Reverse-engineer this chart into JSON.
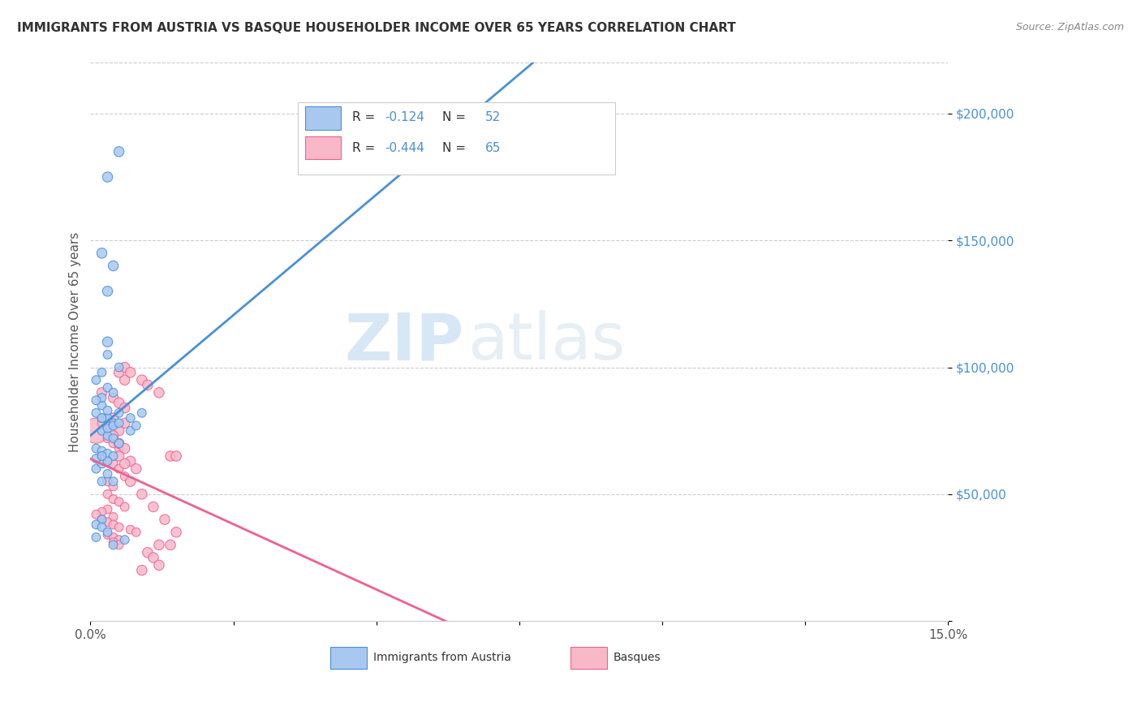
{
  "title": "IMMIGRANTS FROM AUSTRIA VS BASQUE HOUSEHOLDER INCOME OVER 65 YEARS CORRELATION CHART",
  "source": "Source: ZipAtlas.com",
  "ylabel": "Householder Income Over 65 years",
  "xlim": [
    0,
    0.15
  ],
  "ylim": [
    0,
    220000
  ],
  "yticks": [
    0,
    50000,
    100000,
    150000,
    200000
  ],
  "ytick_labels": [
    "",
    "$50,000",
    "$100,000",
    "$150,000",
    "$200,000"
  ],
  "xticks": [
    0.0,
    0.025,
    0.05,
    0.075,
    0.1,
    0.125,
    0.15
  ],
  "xtick_labels": [
    "0.0%",
    "",
    "",
    "",
    "",
    "",
    "15.0%"
  ],
  "austria_color": "#a8c8f0",
  "basque_color": "#f9b8c8",
  "austria_line_color": "#4a90d9",
  "basque_line_color": "#f06090",
  "austria_R": -0.124,
  "austria_N": 52,
  "basque_R": -0.444,
  "basque_N": 65,
  "watermark_zip": "ZIP",
  "watermark_atlas": "atlas",
  "austria_x": [
    0.002,
    0.003,
    0.007,
    0.004,
    0.002,
    0.003,
    0.004,
    0.005,
    0.001,
    0.002,
    0.003,
    0.004,
    0.002,
    0.003,
    0.001,
    0.002,
    0.003,
    0.005,
    0.002,
    0.001,
    0.003,
    0.004,
    0.002,
    0.001,
    0.003,
    0.004,
    0.002,
    0.003,
    0.005,
    0.002,
    0.004,
    0.003,
    0.001,
    0.002,
    0.003,
    0.001,
    0.002,
    0.007,
    0.003,
    0.008,
    0.004,
    0.005,
    0.003,
    0.005,
    0.009,
    0.002,
    0.001,
    0.002,
    0.003,
    0.001,
    0.006,
    0.004
  ],
  "austria_y": [
    80000,
    80000,
    80000,
    78000,
    75000,
    73000,
    72000,
    70000,
    68000,
    67000,
    66000,
    65000,
    85000,
    83000,
    82000,
    80000,
    105000,
    100000,
    98000,
    95000,
    92000,
    90000,
    88000,
    87000,
    130000,
    140000,
    145000,
    175000,
    185000,
    55000,
    55000,
    58000,
    60000,
    62000,
    63000,
    64000,
    65000,
    75000,
    76000,
    77000,
    77000,
    78000,
    110000,
    82000,
    82000,
    40000,
    38000,
    37000,
    35000,
    33000,
    32000,
    30000
  ],
  "austria_sizes": [
    60,
    60,
    60,
    60,
    60,
    60,
    60,
    60,
    60,
    60,
    60,
    60,
    60,
    60,
    60,
    60,
    60,
    60,
    60,
    60,
    60,
    60,
    60,
    60,
    80,
    80,
    80,
    80,
    80,
    60,
    60,
    60,
    60,
    60,
    60,
    60,
    60,
    60,
    60,
    60,
    60,
    60,
    80,
    60,
    60,
    60,
    60,
    60,
    60,
    60,
    60,
    60
  ],
  "basque_x": [
    0.001,
    0.002,
    0.003,
    0.004,
    0.005,
    0.002,
    0.003,
    0.004,
    0.005,
    0.006,
    0.003,
    0.004,
    0.003,
    0.004,
    0.005,
    0.006,
    0.003,
    0.002,
    0.001,
    0.004,
    0.002,
    0.003,
    0.004,
    0.005,
    0.007,
    0.008,
    0.003,
    0.004,
    0.005,
    0.004,
    0.005,
    0.002,
    0.004,
    0.005,
    0.006,
    0.004,
    0.006,
    0.005,
    0.004,
    0.005,
    0.006,
    0.005,
    0.007,
    0.006,
    0.008,
    0.007,
    0.009,
    0.011,
    0.013,
    0.015,
    0.014,
    0.006,
    0.005,
    0.006,
    0.007,
    0.009,
    0.01,
    0.012,
    0.01,
    0.011,
    0.012,
    0.014,
    0.015,
    0.009,
    0.012
  ],
  "basque_y": [
    75000,
    78000,
    72000,
    70000,
    68000,
    65000,
    63000,
    62000,
    60000,
    57000,
    55000,
    53000,
    50000,
    48000,
    47000,
    45000,
    44000,
    43000,
    42000,
    41000,
    40000,
    39000,
    38000,
    37000,
    36000,
    35000,
    34000,
    33000,
    32000,
    31000,
    30000,
    90000,
    88000,
    86000,
    84000,
    80000,
    78000,
    75000,
    73000,
    70000,
    68000,
    65000,
    63000,
    62000,
    60000,
    55000,
    50000,
    45000,
    40000,
    35000,
    30000,
    95000,
    98000,
    100000,
    98000,
    95000,
    93000,
    90000,
    27000,
    25000,
    30000,
    65000,
    65000,
    20000,
    22000
  ],
  "basque_sizes": [
    500,
    60,
    60,
    60,
    60,
    60,
    60,
    60,
    60,
    60,
    60,
    60,
    60,
    60,
    60,
    60,
    60,
    60,
    60,
    60,
    60,
    60,
    60,
    60,
    60,
    60,
    60,
    60,
    60,
    60,
    60,
    80,
    80,
    80,
    80,
    80,
    80,
    80,
    80,
    80,
    80,
    80,
    80,
    80,
    80,
    80,
    80,
    80,
    80,
    80,
    80,
    80,
    80,
    80,
    80,
    80,
    80,
    80,
    80,
    80,
    80,
    80,
    80,
    80,
    80
  ]
}
